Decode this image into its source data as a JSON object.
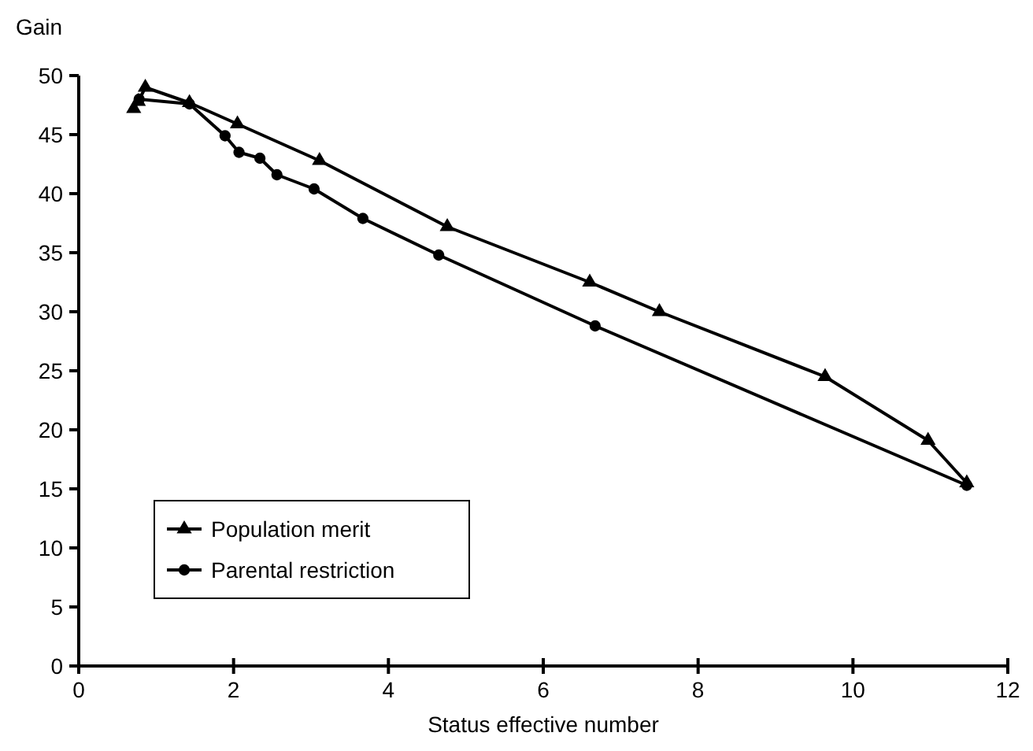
{
  "chart_data": {
    "type": "line",
    "xlabel": "Status effective number",
    "ylabel": "Gain",
    "xlim": [
      0,
      12
    ],
    "ylim": [
      0,
      50
    ],
    "xticks": [
      0,
      2,
      4,
      6,
      8,
      10,
      12
    ],
    "yticks": [
      0,
      5,
      10,
      15,
      20,
      25,
      30,
      35,
      40,
      45,
      50
    ],
    "grid": false,
    "legend": "bottom left",
    "line_style": "solid",
    "series": [
      {
        "name": "Population merit",
        "color": "#000000",
        "marker": "triangle",
        "x": [
          0.71,
          0.77,
          0.86,
          1.43,
          2.05,
          3.11,
          4.76,
          6.6,
          7.5,
          9.64,
          10.97,
          11.47
        ],
        "values": [
          47.2,
          47.8,
          49.0,
          47.7,
          45.9,
          42.8,
          37.2,
          32.5,
          30.0,
          24.5,
          19.1,
          15.5
        ]
      },
      {
        "name": "Parental restriction",
        "color": "#000000",
        "marker": "circle",
        "x": [
          0.78,
          1.43,
          1.89,
          2.07,
          2.34,
          2.56,
          3.04,
          3.67,
          4.65,
          6.67,
          11.47
        ],
        "values": [
          48.0,
          47.6,
          44.9,
          43.5,
          43.0,
          41.6,
          40.4,
          37.9,
          34.8,
          28.8,
          15.3
        ]
      }
    ]
  }
}
